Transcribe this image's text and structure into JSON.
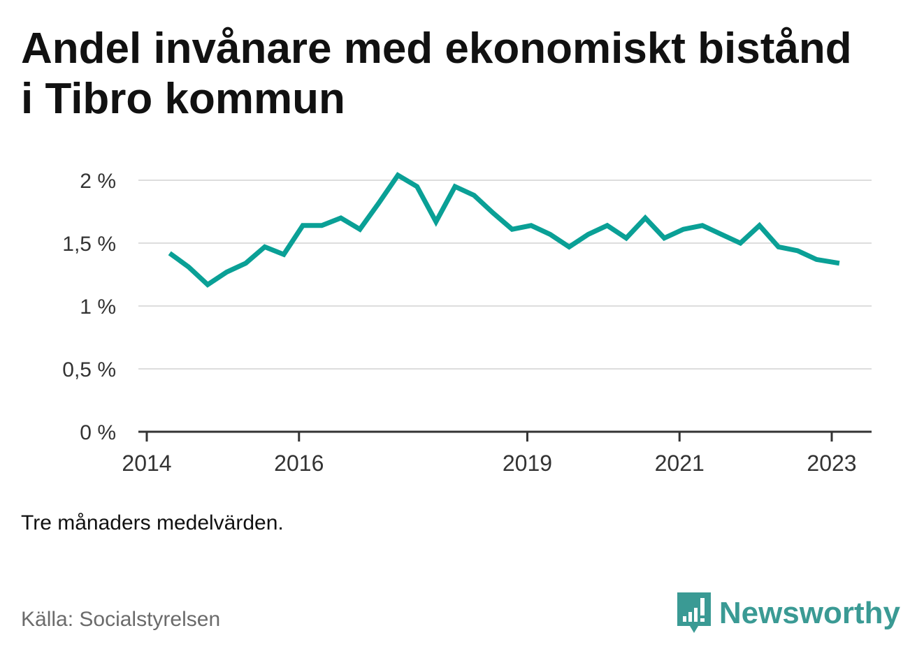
{
  "title": "Andel invånare med ekonomiskt bistånd i Tibro kommun",
  "note": "Tre månaders medelvärden.",
  "source": "Källa: Socialstyrelsen",
  "brand": {
    "name": "Newsworthy",
    "icon": "newsworthy-logo-icon",
    "color": "#3a9a94"
  },
  "colors": {
    "line": "#0aa096",
    "grid": "#dddddd",
    "axis": "#333333"
  },
  "chart_data": {
    "type": "line",
    "title": "",
    "xlabel": "",
    "ylabel": "",
    "ylim": [
      0,
      2.1
    ],
    "xlim": [
      2014,
      2023.5
    ],
    "grid": true,
    "y_ticks": [
      {
        "value": 0,
        "label": "0 %"
      },
      {
        "value": 0.5,
        "label": "0,5 %"
      },
      {
        "value": 1,
        "label": "1 %"
      },
      {
        "value": 1.5,
        "label": "1,5 %"
      },
      {
        "value": 2,
        "label": "2 %"
      }
    ],
    "x_ticks": [
      {
        "value": 2014,
        "label": "2014"
      },
      {
        "value": 2016,
        "label": "2016"
      },
      {
        "value": 2019,
        "label": "2019"
      },
      {
        "value": 2021,
        "label": "2021"
      },
      {
        "value": 2023,
        "label": "2023"
      }
    ],
    "series": [
      {
        "x": [
          2014.3,
          2014.55,
          2014.8,
          2015.05,
          2015.3,
          2015.55,
          2015.8,
          2016.05,
          2016.3,
          2016.55,
          2016.8,
          2017.05,
          2017.3,
          2017.55,
          2017.8,
          2018.05,
          2018.3,
          2018.55,
          2018.8,
          2019.05,
          2019.3,
          2019.55,
          2019.8,
          2020.05,
          2020.3,
          2020.55,
          2020.8,
          2021.05,
          2021.3,
          2021.55,
          2021.8,
          2022.05,
          2022.3,
          2022.55,
          2022.8,
          2023.1
        ],
        "values": [
          1.42,
          1.31,
          1.17,
          1.27,
          1.34,
          1.47,
          1.41,
          1.64,
          1.64,
          1.7,
          1.61,
          1.82,
          2.04,
          1.95,
          1.67,
          1.95,
          1.88,
          1.74,
          1.61,
          1.64,
          1.57,
          1.47,
          1.57,
          1.64,
          1.54,
          1.7,
          1.54,
          1.61,
          1.64,
          1.57,
          1.5,
          1.64,
          1.47,
          1.44,
          1.37,
          1.34
        ]
      }
    ]
  }
}
